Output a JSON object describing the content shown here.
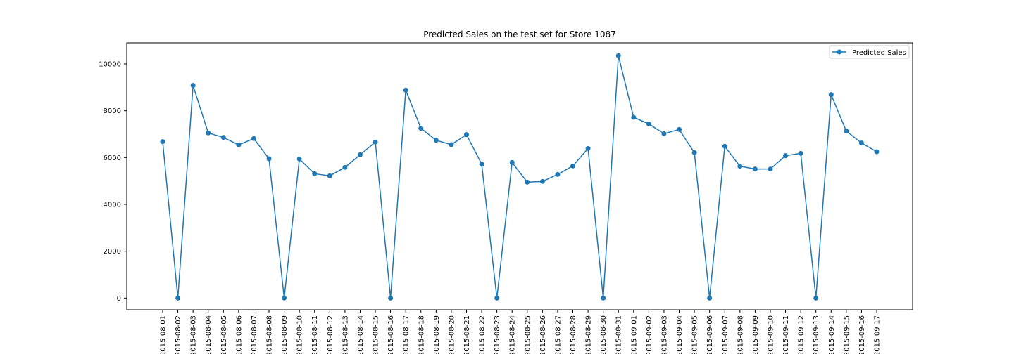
{
  "chart_data": {
    "type": "line",
    "title": "Predicted Sales on the test set for Store 1087",
    "xlabel": "",
    "ylabel": "",
    "ylim": [
      -500,
      10900
    ],
    "yticks": [
      0,
      2000,
      4000,
      6000,
      8000,
      10000
    ],
    "grid": false,
    "legend": "top-right",
    "color": "#1f77b4",
    "x": [
      "2015-08-01",
      "2015-08-02",
      "2015-08-03",
      "2015-08-04",
      "2015-08-05",
      "2015-08-06",
      "2015-08-07",
      "2015-08-08",
      "2015-08-09",
      "2015-08-10",
      "2015-08-11",
      "2015-08-12",
      "2015-08-13",
      "2015-08-14",
      "2015-08-15",
      "2015-08-16",
      "2015-08-17",
      "2015-08-18",
      "2015-08-19",
      "2015-08-20",
      "2015-08-21",
      "2015-08-22",
      "2015-08-23",
      "2015-08-24",
      "2015-08-25",
      "2015-08-26",
      "2015-08-27",
      "2015-08-28",
      "2015-08-29",
      "2015-08-30",
      "2015-08-31",
      "2015-09-01",
      "2015-09-02",
      "2015-09-03",
      "2015-09-04",
      "2015-09-05",
      "2015-09-06",
      "2015-09-07",
      "2015-09-08",
      "2015-09-09",
      "2015-09-10",
      "2015-09-11",
      "2015-09-12",
      "2015-09-13",
      "2015-09-14",
      "2015-09-15",
      "2015-09-16",
      "2015-09-17"
    ],
    "series": [
      {
        "name": "Predicted Sales",
        "values": [
          6680,
          0,
          9080,
          7050,
          6860,
          6540,
          6810,
          5950,
          0,
          5940,
          5310,
          5220,
          5580,
          6120,
          6660,
          0,
          8880,
          7250,
          6740,
          6550,
          6980,
          5720,
          0,
          5790,
          4950,
          4980,
          5280,
          5640,
          6390,
          0,
          10350,
          7720,
          7440,
          7020,
          7200,
          6210,
          0,
          6480,
          5630,
          5510,
          5510,
          6080,
          6180,
          0,
          8690,
          7130,
          6620,
          6250
        ]
      }
    ]
  }
}
